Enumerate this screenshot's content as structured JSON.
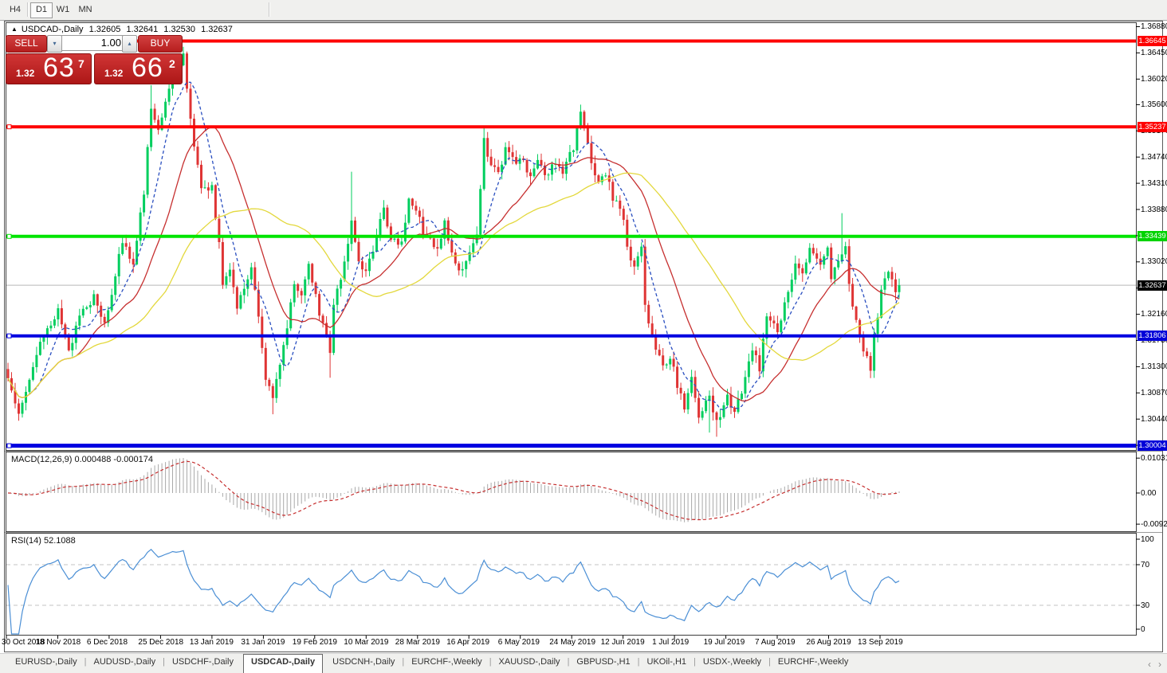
{
  "toolbar": {
    "timeframes": [
      {
        "label": "H4",
        "active": false
      },
      {
        "label": "D1",
        "active": true
      },
      {
        "label": "W1",
        "active": false
      },
      {
        "label": "MN",
        "active": false
      }
    ]
  },
  "chart_window": {
    "title": {
      "icon": "▲",
      "symbol": "USDCAD-,Daily",
      "open": "1.32605",
      "high": "1.32641",
      "low": "1.32530",
      "close": "1.32637"
    },
    "trade_panel": {
      "sell_label": "SELL",
      "buy_label": "BUY",
      "volume": "1.00",
      "spin_down_icon": "▾",
      "spin_up_icon": "▴",
      "sell_price": {
        "prefix": "1.32",
        "big": "63",
        "sup": "7"
      },
      "buy_price": {
        "prefix": "1.32",
        "big": "66",
        "sup": "2"
      }
    }
  },
  "chart_data": {
    "type": "candlestick",
    "symbol": "USDCAD",
    "timeframe": "Daily",
    "title": "USDCAD-,Daily",
    "visible_range": {
      "price_top": 1.3688,
      "price_bottom": 1.30004,
      "date_start": "30 Oct 2018",
      "date_end": "13 Sep 2019"
    },
    "current_price": 1.32637,
    "bull_color": "#00ce5e",
    "bear_color": "#df3434",
    "y_ticks": [
      "1.36880",
      "1.36450",
      "1.36020",
      "1.35600",
      "1.35170",
      "1.34740",
      "1.34310",
      "1.33880",
      "1.33450",
      "1.33020",
      "1.32590",
      "1.32160",
      "1.31730",
      "1.31300",
      "1.30870",
      "1.30440",
      "1.30010"
    ],
    "price_badges": [
      {
        "price": 1.36645,
        "text": "1.36645",
        "bg": "#fe0000"
      },
      {
        "price": 1.35237,
        "text": "1.35237",
        "bg": "#fe0000"
      },
      {
        "price": 1.33439,
        "text": "1.33439",
        "bg": "#00d300"
      },
      {
        "price": 1.32637,
        "text": "1.32637",
        "bg": "#000000"
      },
      {
        "price": 1.31806,
        "text": "1.31806",
        "bg": "#0000d8"
      },
      {
        "price": 1.30004,
        "text": "1.30004",
        "bg": "#0000d8"
      }
    ],
    "hlines": [
      {
        "price": 1.36645,
        "color": "#fe0000",
        "width": 4
      },
      {
        "price": 1.35237,
        "color": "#fe0000",
        "width": 4
      },
      {
        "price": 1.33439,
        "color": "#00e400",
        "width": 4
      },
      {
        "price": 1.31806,
        "color": "#0000e0",
        "width": 4
      },
      {
        "price": 1.30004,
        "color": "#0000e0",
        "width": 5
      }
    ],
    "candles_count": 250,
    "close_anchors": [
      [
        0,
        1.311
      ],
      [
        3,
        1.306
      ],
      [
        6,
        1.3115
      ],
      [
        9,
        1.3165
      ],
      [
        14,
        1.3225
      ],
      [
        17,
        1.3155
      ],
      [
        20,
        1.3215
      ],
      [
        24,
        1.3245
      ],
      [
        27,
        1.3205
      ],
      [
        29,
        1.3255
      ],
      [
        32,
        1.3335
      ],
      [
        35,
        1.33
      ],
      [
        38,
        1.342
      ],
      [
        40,
        1.356
      ],
      [
        42,
        1.352
      ],
      [
        44,
        1.357
      ],
      [
        46,
        1.361
      ],
      [
        49,
        1.364
      ],
      [
        52,
        1.3495
      ],
      [
        54,
        1.3415
      ],
      [
        57,
        1.343
      ],
      [
        59,
        1.333
      ],
      [
        60,
        1.327
      ],
      [
        62,
        1.3295
      ],
      [
        64,
        1.322
      ],
      [
        66,
        1.326
      ],
      [
        68,
        1.329
      ],
      [
        70,
        1.321
      ],
      [
        72,
        1.3105
      ],
      [
        74,
        1.3078
      ],
      [
        77,
        1.316
      ],
      [
        80,
        1.327
      ],
      [
        82,
        1.3245
      ],
      [
        84,
        1.3305
      ],
      [
        86,
        1.3245
      ],
      [
        88,
        1.3195
      ],
      [
        90,
        1.3155
      ],
      [
        91,
        1.3225
      ],
      [
        94,
        1.3305
      ],
      [
        96,
        1.337
      ],
      [
        98,
        1.3305
      ],
      [
        100,
        1.3285
      ],
      [
        103,
        1.334
      ],
      [
        105,
        1.339
      ],
      [
        107,
        1.3345
      ],
      [
        110,
        1.333
      ],
      [
        112,
        1.34
      ],
      [
        115,
        1.337
      ],
      [
        117,
        1.334
      ],
      [
        120,
        1.333
      ],
      [
        122,
        1.3365
      ],
      [
        124,
        1.332
      ],
      [
        126,
        1.329
      ],
      [
        129,
        1.331
      ],
      [
        131,
        1.334
      ],
      [
        133,
        1.35
      ],
      [
        135,
        1.3465
      ],
      [
        137,
        1.3445
      ],
      [
        139,
        1.349
      ],
      [
        141,
        1.347
      ],
      [
        144,
        1.3465
      ],
      [
        146,
        1.3435
      ],
      [
        148,
        1.3475
      ],
      [
        150,
        1.344
      ],
      [
        153,
        1.3465
      ],
      [
        155,
        1.345
      ],
      [
        157,
        1.3475
      ],
      [
        158,
        1.349
      ],
      [
        160,
        1.3545
      ],
      [
        163,
        1.347
      ],
      [
        165,
        1.343
      ],
      [
        167,
        1.345
      ],
      [
        169,
        1.341
      ],
      [
        172,
        1.337
      ],
      [
        173,
        1.333
      ],
      [
        175,
        1.329
      ],
      [
        177,
        1.332
      ],
      [
        178,
        1.323
      ],
      [
        180,
        1.318
      ],
      [
        183,
        1.313
      ],
      [
        185,
        1.315
      ],
      [
        187,
        1.3095
      ],
      [
        189,
        1.3065
      ],
      [
        191,
        1.311
      ],
      [
        193,
        1.305
      ],
      [
        196,
        1.3085
      ],
      [
        198,
        1.3035
      ],
      [
        200,
        1.306
      ],
      [
        201,
        1.308
      ],
      [
        203,
        1.305
      ],
      [
        206,
        1.3115
      ],
      [
        208,
        1.316
      ],
      [
        210,
        1.313
      ],
      [
        212,
        1.322
      ],
      [
        215,
        1.319
      ],
      [
        218,
        1.3255
      ],
      [
        220,
        1.33
      ],
      [
        222,
        1.329
      ],
      [
        224,
        1.332
      ],
      [
        227,
        1.329
      ],
      [
        229,
        1.332
      ],
      [
        230,
        1.328
      ],
      [
        232,
        1.331
      ],
      [
        234,
        1.333
      ],
      [
        235,
        1.327
      ],
      [
        237,
        1.32
      ],
      [
        239,
        1.315
      ],
      [
        241,
        1.313
      ],
      [
        242,
        1.3185
      ],
      [
        244,
        1.325
      ],
      [
        246,
        1.3285
      ],
      [
        248,
        1.325
      ],
      [
        249,
        1.32637
      ]
    ],
    "spikes": {
      "highs": [
        [
          40,
          1.3592
        ],
        [
          49,
          1.3655
        ],
        [
          96,
          1.345
        ],
        [
          133,
          1.3523
        ],
        [
          160,
          1.356
        ],
        [
          233,
          1.3382
        ]
      ],
      "lows": [
        [
          3,
          1.3048
        ],
        [
          74,
          1.3052
        ],
        [
          90,
          1.3112
        ],
        [
          196,
          1.3022
        ],
        [
          198,
          1.3015
        ],
        [
          241,
          1.3118
        ]
      ]
    },
    "moving_averages": [
      {
        "type": "SMA",
        "period": 8,
        "color": "#2a4fc0",
        "style": "dash"
      },
      {
        "type": "SMA",
        "period": 20,
        "color": "#c62f2f",
        "style": "solid"
      },
      {
        "type": "SMA",
        "period": 45,
        "color": "#e3d83c",
        "style": "solid"
      }
    ],
    "indicators": {
      "macd": {
        "fast": 12,
        "slow": 26,
        "signal": 9,
        "last_main": 0.000488,
        "last_signal": -0.000174,
        "scale_max": 0.010311,
        "scale_min": -0.009203,
        "bar_color": "#a9a9a9",
        "signal_color": "#c62f2f"
      },
      "rsi": {
        "period": 14,
        "last": 52.1088,
        "levels": [
          70,
          30
        ],
        "color": "#4b8fd5"
      }
    }
  },
  "macd_panel": {
    "name": "MACD(12,26,9)",
    "values": "0.000488 -0.000174",
    "scale": [
      "0.010311",
      "0.00",
      "-0.009203"
    ]
  },
  "rsi_panel": {
    "name": "RSI(14)",
    "values": "52.1088",
    "scale": [
      "100",
      "70",
      "30",
      "0"
    ]
  },
  "date_axis": [
    "30 Oct 2018",
    "18 Nov 2018",
    "6 Dec 2018",
    "25 Dec 2018",
    "13 Jan 2019",
    "31 Jan 2019",
    "19 Feb 2019",
    "10 Mar 2019",
    "28 Mar 2019",
    "16 Apr 2019",
    "6 May 2019",
    "24 May 2019",
    "12 Jun 2019",
    "1 Jul 2019",
    "19 Jul 2019",
    "7 Aug 2019",
    "26 Aug 2019",
    "13 Sep 2019"
  ],
  "tabs": {
    "items": [
      "EURUSD-,Daily",
      "AUDUSD-,Daily",
      "USDCHF-,Daily",
      "USDCAD-,Daily",
      "USDCNH-,Daily",
      "EURCHF-,Weekly",
      "XAUUSD-,Daily",
      "GBPUSD-,H1",
      "UKOil-,H1",
      "USDX-,Weekly",
      "EURCHF-,Weekly"
    ],
    "active_index": 3,
    "scroll_left": "‹",
    "scroll_right": "›"
  }
}
